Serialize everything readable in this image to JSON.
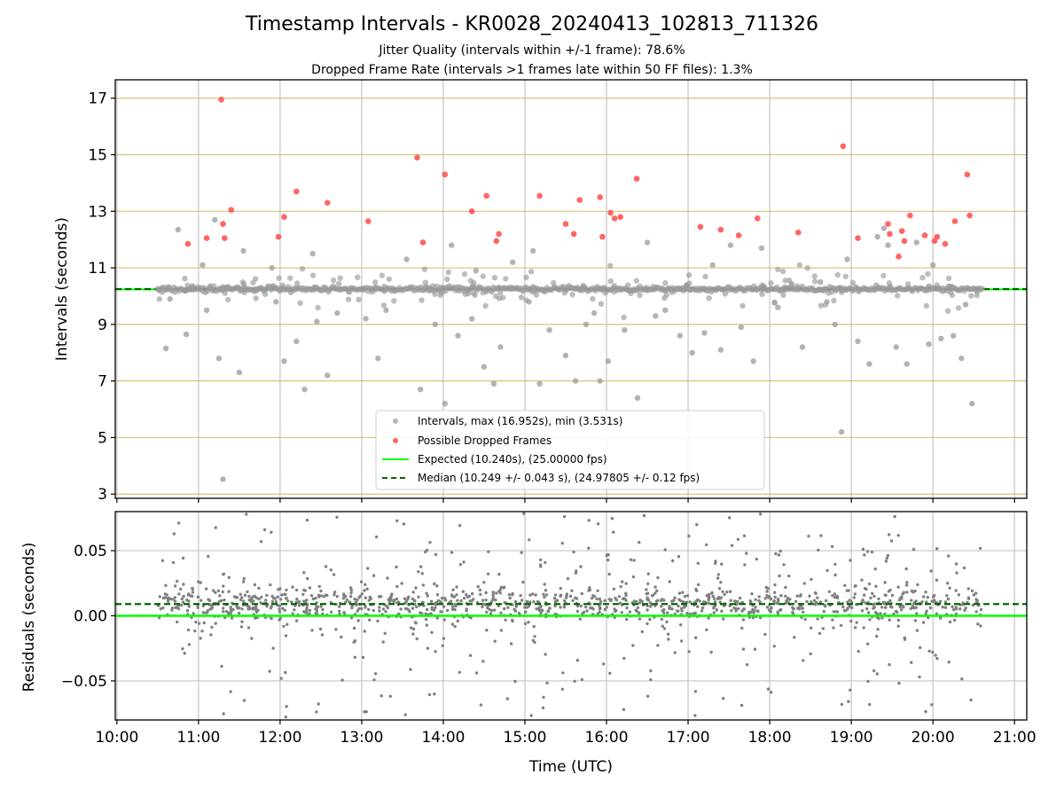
{
  "chart_data": [
    {
      "type": "scatter",
      "title": "Timestamp Intervals - KR0028_20240413_102813_711326",
      "subtitle_lines": [
        "Jitter Quality (intervals within +/-1 frame): 78.6%",
        "Dropped Frame Rate (intervals >1 frames late within 50 FF files): 1.3%"
      ],
      "ylabel": "Intervals (seconds)",
      "ylim": [
        2.85,
        17.65
      ],
      "yticks": [
        3,
        5,
        7,
        9,
        11,
        13,
        15,
        17
      ],
      "ytick_labels": [
        "3",
        "5",
        "7",
        "9",
        "11",
        "13",
        "15",
        "17"
      ],
      "xlim": [
        9.98,
        21.15
      ],
      "xticks": [
        10,
        11,
        12,
        13,
        14,
        15,
        16,
        17,
        18,
        19,
        20,
        21
      ],
      "grid": "horizontal lines at odd y values (goldenrod), vertical lines at each hour (gray)",
      "legend_position": "lower-center",
      "legend": [
        "Intervals, max (16.952s), min (3.531s)",
        "Possible Dropped Frames",
        "Expected (10.240s), (25.00000 fps)",
        "Median (10.249 +/- 0.043 s), (24.97805 +/- 0.12 fps)"
      ],
      "expected_interval": 10.24,
      "median_interval": 10.249,
      "time_range_hours": [
        10.5,
        20.6
      ],
      "series": [
        {
          "name": "Intervals, max (16.952s), min (3.531s)",
          "color": "#999999",
          "x": [
            10.6,
            10.75,
            10.85,
            11.05,
            11.1,
            11.25,
            11.3,
            11.5,
            11.55,
            11.95,
            12.05,
            12.2,
            12.3,
            12.4,
            12.58,
            12.7,
            13.2,
            13.3,
            13.72,
            13.9,
            14.02,
            14.1,
            14.18,
            14.35,
            14.5,
            14.62,
            14.7,
            14.85,
            15.05,
            15.18,
            15.3,
            15.5,
            15.62,
            15.75,
            15.92,
            16.02,
            16.22,
            16.38,
            16.5,
            16.72,
            16.9,
            17.05,
            17.2,
            17.4,
            17.52,
            17.65,
            17.8,
            17.9,
            18.4,
            18.62,
            18.8,
            18.88,
            18.95,
            19.08,
            19.22,
            19.32,
            19.45,
            19.55,
            19.68,
            19.8,
            19.95,
            20.1,
            20.25,
            20.35,
            20.48,
            10.65,
            11.2,
            11.9,
            12.45,
            13.05,
            13.55,
            14.4,
            15.1,
            15.85,
            16.6,
            17.3,
            18.1,
            18.7,
            19.4,
            20.0,
            20.4
          ],
          "values": [
            8.15,
            12.35,
            8.65,
            11.1,
            9.5,
            7.8,
            3.53,
            7.3,
            11.6,
            9.8,
            7.7,
            8.4,
            6.7,
            11.5,
            7.2,
            9.4,
            7.8,
            9.5,
            6.7,
            9.0,
            6.2,
            11.8,
            8.6,
            9.2,
            7.5,
            6.9,
            8.2,
            11.2,
            9.8,
            6.9,
            8.8,
            7.9,
            7.0,
            9.0,
            7.0,
            7.7,
            8.8,
            6.4,
            11.9,
            9.5,
            8.6,
            8.0,
            8.7,
            8.1,
            11.8,
            8.9,
            7.7,
            11.7,
            8.2,
            10.5,
            9.0,
            5.2,
            11.3,
            8.4,
            7.6,
            12.1,
            11.8,
            8.2,
            7.6,
            11.9,
            8.3,
            8.5,
            8.6,
            7.8,
            6.2,
            9.9,
            12.7,
            11.0,
            9.1,
            9.2,
            11.3,
            10.9,
            11.6,
            9.4,
            9.3,
            11.1,
            9.6,
            9.8,
            12.4,
            11.1,
            9.7
          ]
        },
        {
          "name": "Possible Dropped Frames",
          "color": "#ff4a4a",
          "x": [
            10.87,
            11.1,
            11.28,
            11.3,
            11.32,
            11.4,
            11.98,
            12.05,
            12.2,
            12.58,
            13.08,
            13.68,
            13.75,
            14.02,
            14.35,
            14.53,
            14.65,
            14.68,
            15.18,
            15.5,
            15.6,
            15.67,
            15.92,
            15.95,
            16.05,
            16.1,
            16.17,
            16.37,
            17.15,
            17.4,
            17.62,
            17.85,
            18.35,
            18.9,
            19.08,
            19.45,
            19.47,
            19.58,
            19.65,
            19.72,
            19.9,
            20.02,
            20.05,
            20.15,
            20.27,
            20.42,
            20.45,
            19.62
          ],
          "values": [
            11.85,
            12.05,
            16.95,
            12.55,
            12.05,
            13.05,
            12.1,
            12.8,
            13.7,
            13.3,
            12.65,
            14.9,
            11.9,
            14.3,
            13.0,
            13.55,
            11.95,
            12.2,
            13.55,
            12.55,
            12.2,
            13.4,
            13.5,
            12.1,
            12.95,
            12.75,
            12.8,
            14.15,
            12.45,
            12.35,
            12.15,
            12.75,
            12.25,
            15.3,
            12.05,
            12.55,
            12.2,
            11.4,
            11.95,
            12.85,
            12.15,
            11.95,
            12.1,
            11.85,
            12.65,
            14.3,
            12.85,
            12.3
          ]
        }
      ]
    },
    {
      "type": "scatter",
      "ylabel": "Residuals (seconds)",
      "xlabel": "Time (UTC)",
      "ylim": [
        -0.08,
        0.08
      ],
      "yticks": [
        -0.05,
        0.0,
        0.05
      ],
      "ytick_labels": [
        "−0.05",
        "0.00",
        "0.05"
      ],
      "xlim": [
        9.98,
        21.15
      ],
      "xticks": [
        10,
        11,
        12,
        13,
        14,
        15,
        16,
        17,
        18,
        19,
        20,
        21
      ],
      "xtick_labels": [
        "10:00",
        "11:00",
        "12:00",
        "13:00",
        "14:00",
        "15:00",
        "16:00",
        "17:00",
        "18:00",
        "19:00",
        "20:00",
        "21:00"
      ],
      "grid": "on (gray)",
      "expected_residual": 0.0,
      "median_residual": 0.009,
      "series": [
        {
          "name": "Residuals",
          "color": "#808080",
          "note_density": "dense band near 0.00 to 0.02 with scatter spanning about -0.08 to 0.08 over 10.5 to 20.6 h"
        }
      ]
    }
  ],
  "colors": {
    "expected_line": "#00ff00",
    "median_line": "#006400",
    "interval_points": "#999999",
    "dropped_points": "#ff4a4a",
    "residual_points": "#808080",
    "hgrid_top": "#d8c27a",
    "vgrid": "#c4c4c4"
  }
}
